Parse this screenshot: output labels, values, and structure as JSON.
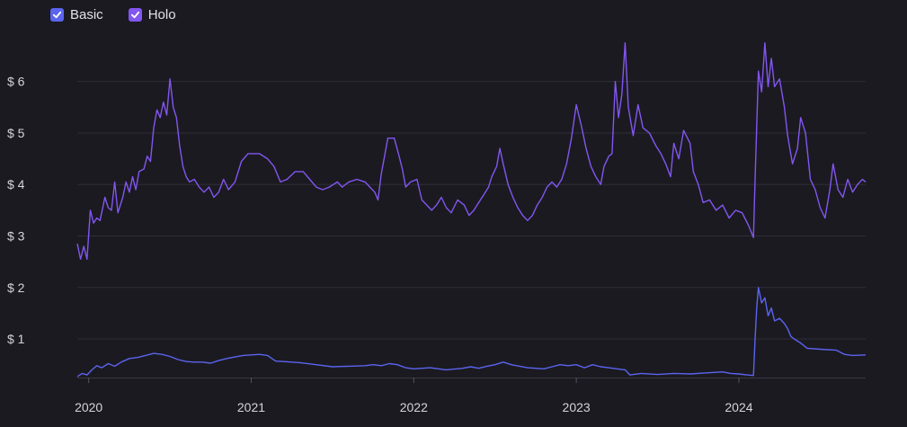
{
  "legend": {
    "items": [
      {
        "label": "Basic",
        "color": "#5b64ee",
        "checked": true,
        "icon": "checkmark-icon"
      },
      {
        "label": "Holo",
        "color": "#8256f0",
        "checked": true,
        "icon": "checkmark-icon"
      }
    ]
  },
  "chart_data": {
    "type": "line",
    "title": "",
    "xlabel": "",
    "ylabel": "",
    "y_tick_labels": [
      "$ 1",
      "$ 2",
      "$ 3",
      "$ 4",
      "$ 5",
      "$ 6"
    ],
    "y_ticks": [
      1,
      2,
      3,
      4,
      5,
      6
    ],
    "x_tick_labels": [
      "2020",
      "2021",
      "2022",
      "2023",
      "2024"
    ],
    "x_ticks": [
      2020.0,
      2021.0,
      2022.0,
      2023.0,
      2024.0
    ],
    "xlim": [
      2019.93,
      2024.78
    ],
    "ylim": [
      0.25,
      6.85
    ],
    "grid": "horizontal",
    "legend_position": "top-left",
    "series": [
      {
        "name": "Holo",
        "color": "#8256f0",
        "points": [
          [
            2019.93,
            2.85
          ],
          [
            2019.95,
            2.55
          ],
          [
            2019.97,
            2.8
          ],
          [
            2019.99,
            2.55
          ],
          [
            2020.01,
            3.5
          ],
          [
            2020.03,
            3.25
          ],
          [
            2020.05,
            3.35
          ],
          [
            2020.07,
            3.3
          ],
          [
            2020.1,
            3.75
          ],
          [
            2020.12,
            3.55
          ],
          [
            2020.14,
            3.5
          ],
          [
            2020.16,
            4.05
          ],
          [
            2020.18,
            3.45
          ],
          [
            2020.21,
            3.75
          ],
          [
            2020.23,
            4.05
          ],
          [
            2020.25,
            3.85
          ],
          [
            2020.27,
            4.15
          ],
          [
            2020.29,
            3.9
          ],
          [
            2020.31,
            4.25
          ],
          [
            2020.34,
            4.3
          ],
          [
            2020.36,
            4.55
          ],
          [
            2020.38,
            4.45
          ],
          [
            2020.4,
            5.1
          ],
          [
            2020.42,
            5.45
          ],
          [
            2020.44,
            5.3
          ],
          [
            2020.46,
            5.6
          ],
          [
            2020.48,
            5.35
          ],
          [
            2020.5,
            6.05
          ],
          [
            2020.52,
            5.5
          ],
          [
            2020.54,
            5.3
          ],
          [
            2020.56,
            4.75
          ],
          [
            2020.58,
            4.35
          ],
          [
            2020.6,
            4.15
          ],
          [
            2020.62,
            4.05
          ],
          [
            2020.65,
            4.1
          ],
          [
            2020.68,
            3.95
          ],
          [
            2020.71,
            3.85
          ],
          [
            2020.74,
            3.95
          ],
          [
            2020.77,
            3.75
          ],
          [
            2020.8,
            3.85
          ],
          [
            2020.83,
            4.1
          ],
          [
            2020.86,
            3.9
          ],
          [
            2020.9,
            4.05
          ],
          [
            2020.94,
            4.45
          ],
          [
            2020.98,
            4.6
          ],
          [
            2021.05,
            4.6
          ],
          [
            2021.1,
            4.5
          ],
          [
            2021.14,
            4.35
          ],
          [
            2021.18,
            4.05
          ],
          [
            2021.22,
            4.1
          ],
          [
            2021.27,
            4.25
          ],
          [
            2021.32,
            4.25
          ],
          [
            2021.36,
            4.1
          ],
          [
            2021.4,
            3.95
          ],
          [
            2021.44,
            3.9
          ],
          [
            2021.48,
            3.95
          ],
          [
            2021.53,
            4.05
          ],
          [
            2021.56,
            3.95
          ],
          [
            2021.6,
            4.05
          ],
          [
            2021.65,
            4.1
          ],
          [
            2021.7,
            4.05
          ],
          [
            2021.73,
            3.95
          ],
          [
            2021.76,
            3.85
          ],
          [
            2021.78,
            3.7
          ],
          [
            2021.8,
            4.2
          ],
          [
            2021.82,
            4.55
          ],
          [
            2021.84,
            4.9
          ],
          [
            2021.88,
            4.9
          ],
          [
            2021.91,
            4.55
          ],
          [
            2021.93,
            4.3
          ],
          [
            2021.95,
            3.95
          ],
          [
            2021.98,
            4.05
          ],
          [
            2022.02,
            4.1
          ],
          [
            2022.05,
            3.7
          ],
          [
            2022.08,
            3.6
          ],
          [
            2022.11,
            3.5
          ],
          [
            2022.14,
            3.6
          ],
          [
            2022.17,
            3.75
          ],
          [
            2022.2,
            3.55
          ],
          [
            2022.23,
            3.45
          ],
          [
            2022.27,
            3.7
          ],
          [
            2022.31,
            3.6
          ],
          [
            2022.34,
            3.4
          ],
          [
            2022.37,
            3.5
          ],
          [
            2022.4,
            3.65
          ],
          [
            2022.43,
            3.8
          ],
          [
            2022.46,
            3.95
          ],
          [
            2022.48,
            4.15
          ],
          [
            2022.51,
            4.35
          ],
          [
            2022.53,
            4.7
          ],
          [
            2022.55,
            4.4
          ],
          [
            2022.58,
            4.0
          ],
          [
            2022.61,
            3.75
          ],
          [
            2022.64,
            3.55
          ],
          [
            2022.67,
            3.4
          ],
          [
            2022.7,
            3.3
          ],
          [
            2022.73,
            3.4
          ],
          [
            2022.76,
            3.6
          ],
          [
            2022.79,
            3.75
          ],
          [
            2022.82,
            3.95
          ],
          [
            2022.85,
            4.05
          ],
          [
            2022.88,
            3.95
          ],
          [
            2022.91,
            4.1
          ],
          [
            2022.94,
            4.4
          ],
          [
            2022.97,
            4.9
          ],
          [
            2023.0,
            5.55
          ],
          [
            2023.03,
            5.15
          ],
          [
            2023.06,
            4.7
          ],
          [
            2023.09,
            4.35
          ],
          [
            2023.12,
            4.15
          ],
          [
            2023.15,
            4.0
          ],
          [
            2023.17,
            4.35
          ],
          [
            2023.2,
            4.55
          ],
          [
            2023.22,
            4.6
          ],
          [
            2023.24,
            6.0
          ],
          [
            2023.26,
            5.3
          ],
          [
            2023.28,
            5.75
          ],
          [
            2023.3,
            6.75
          ],
          [
            2023.32,
            5.5
          ],
          [
            2023.35,
            4.95
          ],
          [
            2023.38,
            5.55
          ],
          [
            2023.41,
            5.1
          ],
          [
            2023.45,
            5.0
          ],
          [
            2023.49,
            4.75
          ],
          [
            2023.52,
            4.6
          ],
          [
            2023.55,
            4.4
          ],
          [
            2023.58,
            4.15
          ],
          [
            2023.6,
            4.8
          ],
          [
            2023.63,
            4.5
          ],
          [
            2023.66,
            5.05
          ],
          [
            2023.7,
            4.8
          ],
          [
            2023.72,
            4.25
          ],
          [
            2023.75,
            4.0
          ],
          [
            2023.78,
            3.65
          ],
          [
            2023.82,
            3.7
          ],
          [
            2023.86,
            3.5
          ],
          [
            2023.9,
            3.6
          ],
          [
            2023.94,
            3.35
          ],
          [
            2023.98,
            3.5
          ],
          [
            2024.02,
            3.45
          ],
          [
            2024.06,
            3.2
          ],
          [
            2024.09,
            2.97
          ],
          [
            2024.1,
            4.1
          ],
          [
            2024.12,
            6.2
          ],
          [
            2024.14,
            5.8
          ],
          [
            2024.16,
            6.75
          ],
          [
            2024.18,
            5.9
          ],
          [
            2024.2,
            6.45
          ],
          [
            2024.22,
            5.9
          ],
          [
            2024.25,
            6.05
          ],
          [
            2024.28,
            5.5
          ],
          [
            2024.3,
            4.95
          ],
          [
            2024.33,
            4.4
          ],
          [
            2024.36,
            4.7
          ],
          [
            2024.38,
            5.3
          ],
          [
            2024.41,
            5.0
          ],
          [
            2024.44,
            4.1
          ],
          [
            2024.47,
            3.9
          ],
          [
            2024.5,
            3.55
          ],
          [
            2024.53,
            3.35
          ],
          [
            2024.56,
            3.9
          ],
          [
            2024.58,
            4.4
          ],
          [
            2024.61,
            3.9
          ],
          [
            2024.64,
            3.75
          ],
          [
            2024.67,
            4.1
          ],
          [
            2024.7,
            3.85
          ],
          [
            2024.73,
            4.0
          ],
          [
            2024.76,
            4.1
          ],
          [
            2024.78,
            4.05
          ]
        ]
      },
      {
        "name": "Basic",
        "color": "#5b64ee",
        "points": [
          [
            2019.93,
            0.27
          ],
          [
            2019.96,
            0.33
          ],
          [
            2019.99,
            0.3
          ],
          [
            2020.02,
            0.4
          ],
          [
            2020.05,
            0.48
          ],
          [
            2020.08,
            0.44
          ],
          [
            2020.12,
            0.52
          ],
          [
            2020.16,
            0.47
          ],
          [
            2020.2,
            0.55
          ],
          [
            2020.25,
            0.62
          ],
          [
            2020.3,
            0.64
          ],
          [
            2020.35,
            0.68
          ],
          [
            2020.4,
            0.72
          ],
          [
            2020.45,
            0.7
          ],
          [
            2020.5,
            0.66
          ],
          [
            2020.55,
            0.6
          ],
          [
            2020.6,
            0.56
          ],
          [
            2020.65,
            0.55
          ],
          [
            2020.7,
            0.55
          ],
          [
            2020.75,
            0.53
          ],
          [
            2020.8,
            0.58
          ],
          [
            2020.85,
            0.62
          ],
          [
            2020.9,
            0.65
          ],
          [
            2020.95,
            0.68
          ],
          [
            2021.0,
            0.69
          ],
          [
            2021.05,
            0.7
          ],
          [
            2021.1,
            0.68
          ],
          [
            2021.15,
            0.57
          ],
          [
            2021.2,
            0.56
          ],
          [
            2021.3,
            0.54
          ],
          [
            2021.4,
            0.5
          ],
          [
            2021.5,
            0.46
          ],
          [
            2021.6,
            0.47
          ],
          [
            2021.7,
            0.48
          ],
          [
            2021.75,
            0.5
          ],
          [
            2021.8,
            0.48
          ],
          [
            2021.85,
            0.52
          ],
          [
            2021.9,
            0.5
          ],
          [
            2021.95,
            0.44
          ],
          [
            2022.0,
            0.42
          ],
          [
            2022.1,
            0.44
          ],
          [
            2022.2,
            0.4
          ],
          [
            2022.3,
            0.43
          ],
          [
            2022.35,
            0.46
          ],
          [
            2022.4,
            0.43
          ],
          [
            2022.45,
            0.47
          ],
          [
            2022.5,
            0.5
          ],
          [
            2022.55,
            0.55
          ],
          [
            2022.6,
            0.5
          ],
          [
            2022.7,
            0.44
          ],
          [
            2022.8,
            0.42
          ],
          [
            2022.85,
            0.46
          ],
          [
            2022.9,
            0.5
          ],
          [
            2022.95,
            0.48
          ],
          [
            2023.0,
            0.5
          ],
          [
            2023.05,
            0.44
          ],
          [
            2023.1,
            0.5
          ],
          [
            2023.15,
            0.46
          ],
          [
            2023.2,
            0.44
          ],
          [
            2023.25,
            0.42
          ],
          [
            2023.3,
            0.4
          ],
          [
            2023.33,
            0.3
          ],
          [
            2023.4,
            0.33
          ],
          [
            2023.5,
            0.31
          ],
          [
            2023.6,
            0.33
          ],
          [
            2023.7,
            0.32
          ],
          [
            2023.8,
            0.34
          ],
          [
            2023.9,
            0.36
          ],
          [
            2023.95,
            0.33
          ],
          [
            2024.0,
            0.32
          ],
          [
            2024.05,
            0.3
          ],
          [
            2024.09,
            0.29
          ],
          [
            2024.1,
            1.0
          ],
          [
            2024.11,
            1.6
          ],
          [
            2024.12,
            2.0
          ],
          [
            2024.14,
            1.7
          ],
          [
            2024.16,
            1.8
          ],
          [
            2024.18,
            1.45
          ],
          [
            2024.2,
            1.6
          ],
          [
            2024.22,
            1.35
          ],
          [
            2024.25,
            1.4
          ],
          [
            2024.28,
            1.3
          ],
          [
            2024.3,
            1.2
          ],
          [
            2024.32,
            1.05
          ],
          [
            2024.34,
            1.0
          ],
          [
            2024.38,
            0.92
          ],
          [
            2024.42,
            0.82
          ],
          [
            2024.5,
            0.8
          ],
          [
            2024.6,
            0.78
          ],
          [
            2024.65,
            0.7
          ],
          [
            2024.7,
            0.68
          ],
          [
            2024.78,
            0.69
          ]
        ]
      }
    ]
  }
}
